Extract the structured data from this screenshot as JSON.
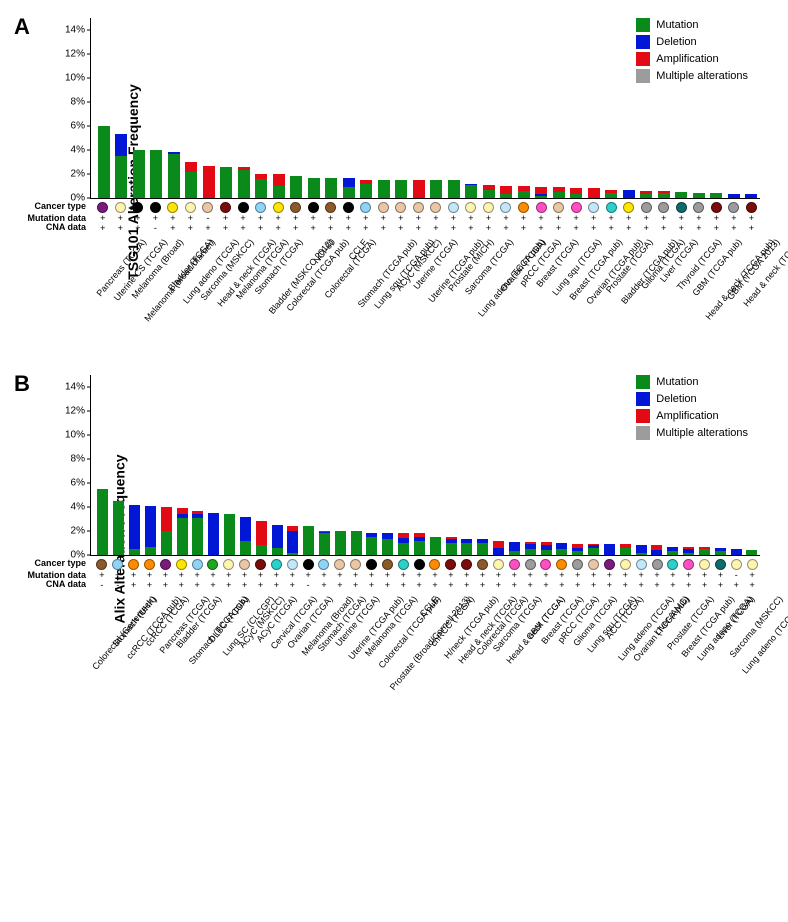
{
  "legend": [
    {
      "label": "Mutation",
      "color": "#0a8a1a"
    },
    {
      "label": "Deletion",
      "color": "#0216d6"
    },
    {
      "label": "Amplification",
      "color": "#e30b13"
    },
    {
      "label": "Multiple alterations",
      "color": "#9c9c9c"
    }
  ],
  "panelA": {
    "letter": "A",
    "ylabel": "TSG101 Alteration Frequency",
    "ymax": 15,
    "ytick_step": 2,
    "row_titles": {
      "cancer": "Cancer type",
      "mut": "Mutation data",
      "cna": "CNA data"
    },
    "items": [
      {
        "label": "Pancreas (TCGA)",
        "dot": "#7a1a7a",
        "mut": "+",
        "cna": "+",
        "seg": {
          "mutation": 6.0
        }
      },
      {
        "label": "Uterine CS (TCGA)",
        "dot": "#fff3b0",
        "mut": "+",
        "cna": "+",
        "seg": {
          "mutation": 3.5,
          "deletion": 1.8
        }
      },
      {
        "label": "Melanoma (Broad)",
        "dot": "#000000",
        "mut": "+",
        "cna": "+",
        "seg": {
          "mutation": 4.0
        }
      },
      {
        "label": "Melanoma (broad/dfarber)",
        "dot": "#000000",
        "mut": "+",
        "cna": "-",
        "seg": {
          "mutation": 4.0
        }
      },
      {
        "label": "Bladder (TCGA)",
        "dot": "#ffe600",
        "mut": "+",
        "cna": "+",
        "seg": {
          "mutation": 3.7,
          "deletion": 0.1
        }
      },
      {
        "label": "Lung adeno (TCGA)",
        "dot": "#fff3b0",
        "mut": "+",
        "cna": "+",
        "seg": {
          "mutation": 2.2,
          "amplification": 0.8
        }
      },
      {
        "label": "Sarcoma (MSKCC)",
        "dot": "#e9c6a6",
        "mut": "-",
        "cna": "+",
        "seg": {
          "amplification": 2.7
        }
      },
      {
        "label": "Head & neck (TCGA)",
        "dot": "#7a0c0c",
        "mut": "+",
        "cna": "+",
        "seg": {
          "mutation": 2.6
        }
      },
      {
        "label": "Melanoma (TCGA)",
        "dot": "#000000",
        "mut": "+",
        "cna": "+",
        "seg": {
          "mutation": 2.3,
          "amplification": 0.3
        }
      },
      {
        "label": "Stomach (TCGA)",
        "dot": "#8fd4f7",
        "mut": "+",
        "cna": "+",
        "seg": {
          "mutation": 1.6,
          "amplification": 0.4
        }
      },
      {
        "label": "Bladder (MSKCC 2012)",
        "dot": "#ffe600",
        "mut": "+",
        "cna": "+",
        "seg": {
          "mutation": 1.0,
          "amplification": 1.0
        }
      },
      {
        "label": "Colorectal (TCGA pub)",
        "dot": "#8a5a2b",
        "mut": "+",
        "cna": "+",
        "seg": {
          "mutation": 1.8
        }
      },
      {
        "label": "NCI-60",
        "dot": "#000000",
        "mut": "+",
        "cna": "+",
        "seg": {
          "mutation": 1.7
        }
      },
      {
        "label": "Colorectal (TCGA)",
        "dot": "#8a5a2b",
        "mut": "+",
        "cna": "+",
        "seg": {
          "mutation": 1.7
        }
      },
      {
        "label": "CCLE",
        "dot": "#000000",
        "mut": "+",
        "cna": "+",
        "seg": {
          "mutation": 0.9,
          "deletion": 0.8
        }
      },
      {
        "label": "Stomach (TCGA pub)",
        "dot": "#8fd4f7",
        "mut": "+",
        "cna": "+",
        "seg": {
          "mutation": 1.2,
          "amplification": 0.3
        }
      },
      {
        "label": "Lung squ (TCGA pub)",
        "dot": "#e9c6a6",
        "mut": "+",
        "cna": "+",
        "seg": {
          "mutation": 1.5
        }
      },
      {
        "label": "ACyC (MSKCC)",
        "dot": "#e9c6a6",
        "mut": "+",
        "cna": "+",
        "seg": {
          "mutation": 1.5
        }
      },
      {
        "label": "Uterine (TCGA)",
        "dot": "#e9c6a6",
        "mut": "+",
        "cna": "+",
        "seg": {
          "amplification": 1.5
        }
      },
      {
        "label": "Uterine (TCGA pub)",
        "dot": "#e9c6a6",
        "mut": "+",
        "cna": "+",
        "seg": {
          "mutation": 1.5
        }
      },
      {
        "label": "Prostate (MICH)",
        "dot": "#c1e7f9",
        "mut": "+",
        "cna": "+",
        "seg": {
          "mutation": 1.5
        }
      },
      {
        "label": "Sarcoma (TCGA)",
        "dot": "#fff3b0",
        "mut": "+",
        "cna": "+",
        "seg": {
          "mutation": 1.1,
          "deletion": 0.1
        }
      },
      {
        "label": "Lung adeno (TCGA pub)",
        "dot": "#fff3b0",
        "mut": "+",
        "cna": "+",
        "seg": {
          "mutation": 0.7,
          "amplification": 0.4
        }
      },
      {
        "label": "Ovarian (TCGA)",
        "dot": "#c1e7f9",
        "mut": "+",
        "cna": "+",
        "seg": {
          "mutation": 0.3,
          "amplification": 0.7
        }
      },
      {
        "label": "pRCC (TCGA)",
        "dot": "#ff8c00",
        "mut": "+",
        "cna": "+",
        "seg": {
          "mutation": 0.6,
          "amplification": 0.4
        }
      },
      {
        "label": "Breast (TCGA)",
        "dot": "#ff4fc3",
        "mut": "+",
        "cna": "+",
        "seg": {
          "mutation": 0.2,
          "deletion": 0.1,
          "amplification": 0.6
        }
      },
      {
        "label": "Lung squ (TCGA)",
        "dot": "#e9c6a6",
        "mut": "+",
        "cna": "+",
        "seg": {
          "mutation": 0.5,
          "amplification": 0.4
        }
      },
      {
        "label": "Breast (TCGA pub)",
        "dot": "#ff4fc3",
        "mut": "+",
        "cna": "+",
        "seg": {
          "mutation": 0.3,
          "amplification": 0.5
        }
      },
      {
        "label": "Ovarian (TCGA pub)",
        "dot": "#c1e7f9",
        "mut": "+",
        "cna": "+",
        "seg": {
          "amplification": 0.8
        }
      },
      {
        "label": "Prostate (TCGA)",
        "dot": "#2ad1c9",
        "mut": "+",
        "cna": "+",
        "seg": {
          "mutation": 0.4,
          "amplification": 0.3
        }
      },
      {
        "label": "Bladder (TCGA pub)",
        "dot": "#ffe600",
        "mut": "+",
        "cna": "+",
        "seg": {
          "deletion": 0.7
        }
      },
      {
        "label": "Glioma (TCGA)",
        "dot": "#9c9c9c",
        "mut": "+",
        "cna": "+",
        "seg": {
          "mutation": 0.3,
          "amplification": 0.3
        }
      },
      {
        "label": "Liver (TCGA)",
        "dot": "#9c9c9c",
        "mut": "+",
        "cna": "+",
        "seg": {
          "mutation": 0.4,
          "amplification": 0.2
        }
      },
      {
        "label": "Thyroid (TCGA)",
        "dot": "#0f6b6b",
        "mut": "+",
        "cna": "+",
        "seg": {
          "mutation": 0.5
        }
      },
      {
        "label": "GBM (TCGA pub)",
        "dot": "#9c9c9c",
        "mut": "+",
        "cna": "+",
        "seg": {
          "mutation": 0.4
        }
      },
      {
        "label": "Head & neck (TCGA pub)",
        "dot": "#7a0c0c",
        "mut": "+",
        "cna": "+",
        "seg": {
          "mutation": 0.4
        }
      },
      {
        "label": "GBM (TCGA 2013)",
        "dot": "#9c9c9c",
        "mut": "+",
        "cna": "+",
        "seg": {
          "deletion": 0.3
        }
      },
      {
        "label": "Head & neck (TCGA)",
        "dot": "#7a0c0c",
        "mut": "+",
        "cna": "+",
        "seg": {
          "deletion": 0.3
        }
      }
    ]
  },
  "panelB": {
    "letter": "B",
    "ylabel": "Alix Alteration Frequency",
    "ymax": 15,
    "ytick_step": 2,
    "row_titles": {
      "cancer": "Cancer type",
      "mut": "Mutation data",
      "cna": "CNA data"
    },
    "items": [
      {
        "label": "Colorectal (Genentech)",
        "dot": "#8a5a2b",
        "mut": "+",
        "cna": "-",
        "seg": {
          "mutation": 5.5
        }
      },
      {
        "label": "Stomach (UHK)",
        "dot": "#8fd4f7",
        "mut": "+",
        "cna": "-",
        "seg": {
          "mutation": 4.5
        }
      },
      {
        "label": "ccRCC (TCGA pub)",
        "dot": "#ff8c00",
        "mut": "+",
        "cna": "+",
        "seg": {
          "mutation": 0.5,
          "deletion": 3.7
        }
      },
      {
        "label": "ccRCC (TCGA)",
        "dot": "#ff8c00",
        "mut": "+",
        "cna": "+",
        "seg": {
          "mutation": 0.7,
          "deletion": 3.4
        }
      },
      {
        "label": "Pancreas (TCGA)",
        "dot": "#7a1a7a",
        "mut": "+",
        "cna": "+",
        "seg": {
          "mutation": 2.0,
          "amplification": 2.0
        }
      },
      {
        "label": "Bladder (TCGA)",
        "dot": "#ffe600",
        "mut": "+",
        "cna": "+",
        "seg": {
          "mutation": 3.1,
          "deletion": 0.3,
          "amplification": 0.5
        }
      },
      {
        "label": "Stomach (TCGA pub)",
        "dot": "#8fd4f7",
        "mut": "+",
        "cna": "+",
        "seg": {
          "mutation": 3.1,
          "deletion": 0.3,
          "amplification": 0.3
        }
      },
      {
        "label": "DLBC (TCGA)",
        "dot": "#1fa81f",
        "mut": "+",
        "cna": "+",
        "seg": {
          "deletion": 3.5
        }
      },
      {
        "label": "Lung SC (CLCGP)",
        "dot": "#fff3b0",
        "mut": "+",
        "cna": "+",
        "seg": {
          "mutation": 3.4
        }
      },
      {
        "label": "ACyC (MSKCC)",
        "dot": "#e9c6a6",
        "mut": "+",
        "cna": "+",
        "seg": {
          "mutation": 1.2,
          "deletion": 2.0
        }
      },
      {
        "label": "ACyC (TCGA)",
        "dot": "#7a0c0c",
        "mut": "+",
        "cna": "+",
        "seg": {
          "mutation": 0.8,
          "amplification": 2.0
        }
      },
      {
        "label": "Cervical (TCGA)",
        "dot": "#2ad1c9",
        "mut": "+",
        "cna": "+",
        "seg": {
          "mutation": 0.6,
          "deletion": 1.9
        }
      },
      {
        "label": "Ovarian (TCGA)",
        "dot": "#c1e7f9",
        "mut": "+",
        "cna": "+",
        "seg": {
          "mutation": 0.2,
          "deletion": 1.8,
          "amplification": 0.4
        }
      },
      {
        "label": "Melanoma (Broad)",
        "dot": "#000000",
        "mut": "+",
        "cna": "-",
        "seg": {
          "mutation": 2.4
        }
      },
      {
        "label": "Stomach (TCGA)",
        "dot": "#8fd4f7",
        "mut": "+",
        "cna": "+",
        "seg": {
          "mutation": 1.8,
          "deletion": 0.1,
          "amplification": 0.1
        }
      },
      {
        "label": "Uterine (TCGA)",
        "dot": "#e9c6a6",
        "mut": "+",
        "cna": "+",
        "seg": {
          "mutation": 2.0
        }
      },
      {
        "label": "Uterine (TCGA pub)",
        "dot": "#e9c6a6",
        "mut": "+",
        "cna": "+",
        "seg": {
          "mutation": 2.0
        }
      },
      {
        "label": "Melanoma (TCGA)",
        "dot": "#000000",
        "mut": "+",
        "cna": "+",
        "seg": {
          "mutation": 1.5,
          "deletion": 0.3
        }
      },
      {
        "label": "Colorectal (TCGA pub)",
        "dot": "#8a5a2b",
        "mut": "+",
        "cna": "+",
        "seg": {
          "mutation": 1.3,
          "deletion": 0.5
        }
      },
      {
        "label": "Prostate (Broad/Cornell 2013)",
        "dot": "#2ad1c9",
        "mut": "+",
        "cna": "+",
        "seg": {
          "mutation": 1.0,
          "deletion": 0.4,
          "amplification": 0.4
        }
      },
      {
        "label": "CCLE",
        "dot": "#000000",
        "mut": "+",
        "cna": "+",
        "seg": {
          "mutation": 1.2,
          "deletion": 0.3,
          "amplification": 0.3
        }
      },
      {
        "label": "chRCC (TCGA)",
        "dot": "#ff8c00",
        "mut": "+",
        "cna": "+",
        "seg": {
          "mutation": 1.5
        }
      },
      {
        "label": "H/neck (TCGA pub)",
        "dot": "#7a0c0c",
        "mut": "+",
        "cna": "+",
        "seg": {
          "mutation": 1.0,
          "deletion": 0.3,
          "amplification": 0.2
        }
      },
      {
        "label": "Head & neck (TCGA)",
        "dot": "#7a0c0c",
        "mut": "+",
        "cna": "+",
        "seg": {
          "mutation": 1.0,
          "deletion": 0.3
        }
      },
      {
        "label": "Colorectal (TCGA)",
        "dot": "#8a5a2b",
        "mut": "+",
        "cna": "+",
        "seg": {
          "mutation": 1.0,
          "deletion": 0.3
        }
      },
      {
        "label": "Sarcoma (TCGA)",
        "dot": "#fff3b0",
        "mut": "+",
        "cna": "+",
        "seg": {
          "deletion": 0.6,
          "amplification": 0.6
        }
      },
      {
        "label": "Head & neck (TCGA)",
        "dot": "#ff4fc3",
        "mut": "+",
        "cna": "+",
        "seg": {
          "mutation": 0.3,
          "deletion": 0.8
        }
      },
      {
        "label": "GBM (TCGA)",
        "dot": "#9c9c9c",
        "mut": "+",
        "cna": "+",
        "seg": {
          "mutation": 0.5,
          "deletion": 0.4,
          "amplification": 0.2
        }
      },
      {
        "label": "Breast (TCGA)",
        "dot": "#ff4fc3",
        "mut": "+",
        "cna": "+",
        "seg": {
          "mutation": 0.4,
          "deletion": 0.4,
          "amplification": 0.3
        }
      },
      {
        "label": "pRCC (TCGA)",
        "dot": "#ff8c00",
        "mut": "+",
        "cna": "+",
        "seg": {
          "mutation": 0.5,
          "deletion": 0.5
        }
      },
      {
        "label": "Glioma (TCGA)",
        "dot": "#9c9c9c",
        "mut": "+",
        "cna": "+",
        "seg": {
          "mutation": 0.3,
          "deletion": 0.3,
          "amplification": 0.3
        }
      },
      {
        "label": "Lung squ (TCGA)",
        "dot": "#e9c6a6",
        "mut": "+",
        "cna": "+",
        "seg": {
          "mutation": 0.6,
          "deletion": 0.2,
          "amplification": 0.1
        }
      },
      {
        "label": "ACC (TCGA)",
        "dot": "#7a1a7a",
        "mut": "+",
        "cna": "+",
        "seg": {
          "deletion": 0.9
        }
      },
      {
        "label": "Lung adeno (TCGA)",
        "dot": "#fff3b0",
        "mut": "+",
        "cna": "+",
        "seg": {
          "mutation": 0.6,
          "amplification": 0.3
        }
      },
      {
        "label": "Ovarian (TCGA pub)",
        "dot": "#c1e7f9",
        "mut": "+",
        "cna": "+",
        "seg": {
          "mutation": 0.2,
          "deletion": 0.6
        }
      },
      {
        "label": "Liver (AMC)",
        "dot": "#9c9c9c",
        "mut": "+",
        "cna": "+",
        "seg": {
          "deletion": 0.4,
          "amplification": 0.4
        }
      },
      {
        "label": "Prostate (TCGA)",
        "dot": "#2ad1c9",
        "mut": "+",
        "cna": "+",
        "seg": {
          "mutation": 0.3,
          "deletion": 0.4
        }
      },
      {
        "label": "Breast (TCGA pub)",
        "dot": "#ff4fc3",
        "mut": "+",
        "cna": "+",
        "seg": {
          "mutation": 0.2,
          "deletion": 0.3,
          "amplification": 0.2
        }
      },
      {
        "label": "Lung adeno (TCGA)",
        "dot": "#fff3b0",
        "mut": "+",
        "cna": "+",
        "seg": {
          "mutation": 0.5,
          "amplification": 0.2
        }
      },
      {
        "label": "Liver (TCGA)",
        "dot": "#0f6b6b",
        "mut": "+",
        "cna": "+",
        "seg": {
          "mutation": 0.3,
          "deletion": 0.3
        }
      },
      {
        "label": "Sarcoma (MSKCC)",
        "dot": "#fff3b0",
        "mut": "-",
        "cna": "+",
        "seg": {
          "deletion": 0.5
        }
      },
      {
        "label": "Lung adeno (TCGA pub)",
        "dot": "#fff3b0",
        "mut": "+",
        "cna": "+",
        "seg": {
          "mutation": 0.4
        }
      }
    ]
  }
}
